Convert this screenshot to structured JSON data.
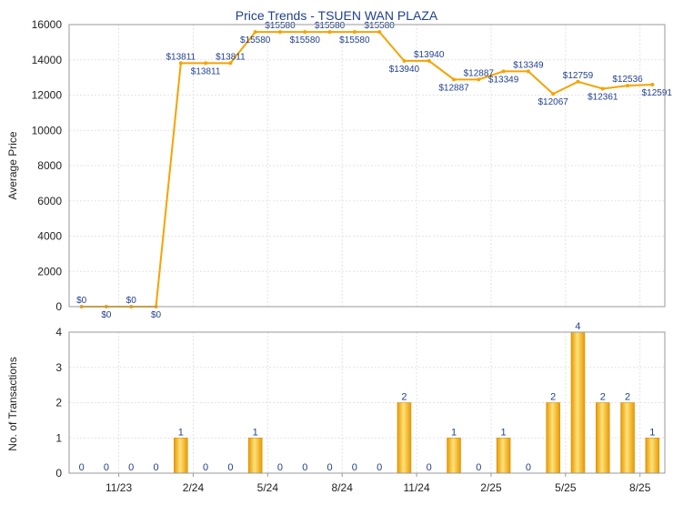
{
  "chart_data": [
    {
      "type": "line",
      "title": "Price Trends - TSUEN WAN PLAZA",
      "ylabel": "Average Price",
      "ylim": [
        0,
        16000
      ],
      "yticks": [
        0,
        2000,
        4000,
        6000,
        8000,
        10000,
        12000,
        14000,
        16000
      ],
      "grid": true,
      "color": "#f5a300",
      "values": [
        0,
        0,
        0,
        0,
        13811,
        13811,
        13811,
        15580,
        15580,
        15580,
        15580,
        15580,
        15580,
        13940,
        13940,
        12887,
        12887,
        13349,
        13349,
        12067,
        12759,
        12361,
        12536,
        12591
      ],
      "labels": [
        "$0",
        "$0",
        "$0",
        "$0",
        "$13811",
        "$13811",
        "$13811",
        "$15580",
        "$15580",
        "$15580",
        "$15580",
        "$15580",
        "$15580",
        "$13940",
        "$13940",
        "$12887",
        "$12887",
        "$13349",
        "$13349",
        "$12067",
        "$12759",
        "$12361",
        "$12536",
        "$12591"
      ]
    },
    {
      "type": "bar",
      "ylabel": "No. of Transactions",
      "ylim": [
        0,
        4
      ],
      "yticks": [
        0,
        1,
        2,
        3,
        4
      ],
      "grid": true,
      "color": "#f5b400",
      "values": [
        0,
        0,
        0,
        0,
        1,
        0,
        0,
        1,
        0,
        0,
        0,
        0,
        0,
        2,
        0,
        1,
        0,
        1,
        0,
        2,
        4,
        2,
        2,
        1
      ],
      "xticks": [
        {
          "label": "11/23",
          "index": 2
        },
        {
          "label": "2/24",
          "index": 5
        },
        {
          "label": "5/24",
          "index": 8
        },
        {
          "label": "8/24",
          "index": 11
        },
        {
          "label": "11/24",
          "index": 14
        },
        {
          "label": "2/25",
          "index": 17
        },
        {
          "label": "5/25",
          "index": 20
        },
        {
          "label": "8/25",
          "index": 23
        }
      ]
    }
  ]
}
